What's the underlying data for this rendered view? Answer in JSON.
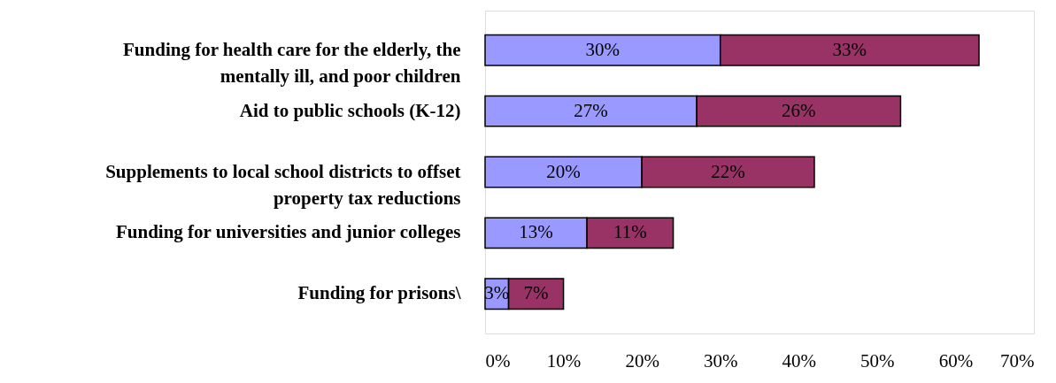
{
  "chart_data": {
    "type": "bar",
    "orientation": "horizontal",
    "stacked": true,
    "categories": [
      "Funding for health care for the elderly, the mentally ill, and poor children",
      "Aid to public schools (K-12)",
      "Supplements to local school districts to offset property tax reductions",
      "Funding for universities and junior colleges",
      "Funding for prisons\\"
    ],
    "series": [
      {
        "color": "#9999ff",
        "values": [
          30,
          27,
          20,
          13,
          3
        ],
        "value_labels": [
          "30%",
          "27%",
          "20%",
          "13%",
          "3%"
        ]
      },
      {
        "color": "#993366",
        "values": [
          33,
          26,
          22,
          11,
          7
        ],
        "value_labels": [
          "33%",
          "26%",
          "22%",
          "11%",
          "7%"
        ]
      }
    ],
    "xlim": [
      0,
      70
    ],
    "xticks": [
      {
        "value": 0,
        "label": "0%"
      },
      {
        "value": 10,
        "label": "10%"
      },
      {
        "value": 20,
        "label": "20%"
      },
      {
        "value": 30,
        "label": "30%"
      },
      {
        "value": 40,
        "label": "40%"
      },
      {
        "value": 50,
        "label": "50%"
      },
      {
        "value": 60,
        "label": "60%"
      },
      {
        "value": 70,
        "label": "70%"
      }
    ],
    "grid": false
  }
}
